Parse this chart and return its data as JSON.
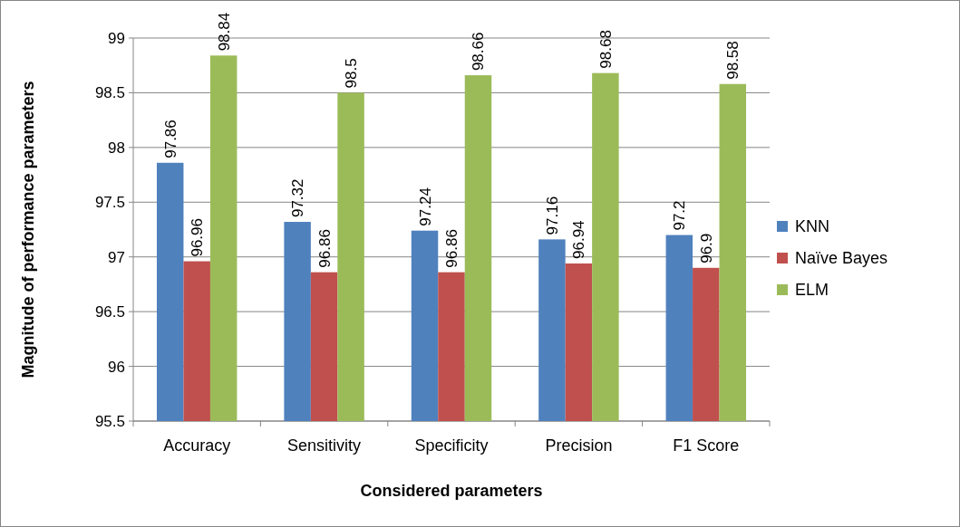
{
  "chart_data": {
    "type": "bar",
    "xlabel": "Considered parameters",
    "ylabel": "Magnitude of performance parameters",
    "categories": [
      "Accuracy",
      "Sensitivity",
      "Specificity",
      "Precision",
      "F1 Score"
    ],
    "series": [
      {
        "name": "KNN",
        "color": "#4f81bd",
        "values": [
          97.86,
          97.32,
          97.24,
          97.16,
          97.2
        ]
      },
      {
        "name": "Naïve Bayes",
        "color": "#c0504d",
        "values": [
          96.96,
          96.86,
          96.86,
          96.94,
          96.9
        ]
      },
      {
        "name": "ELM",
        "color": "#9bbb59",
        "values": [
          98.84,
          98.5,
          98.66,
          98.68,
          98.58
        ]
      }
    ],
    "ylim": [
      95.5,
      99
    ],
    "yticks": [
      95.5,
      96,
      96.5,
      97,
      97.5,
      98,
      98.5,
      99
    ],
    "grid": "y",
    "legend": "right",
    "data_labels": true
  }
}
